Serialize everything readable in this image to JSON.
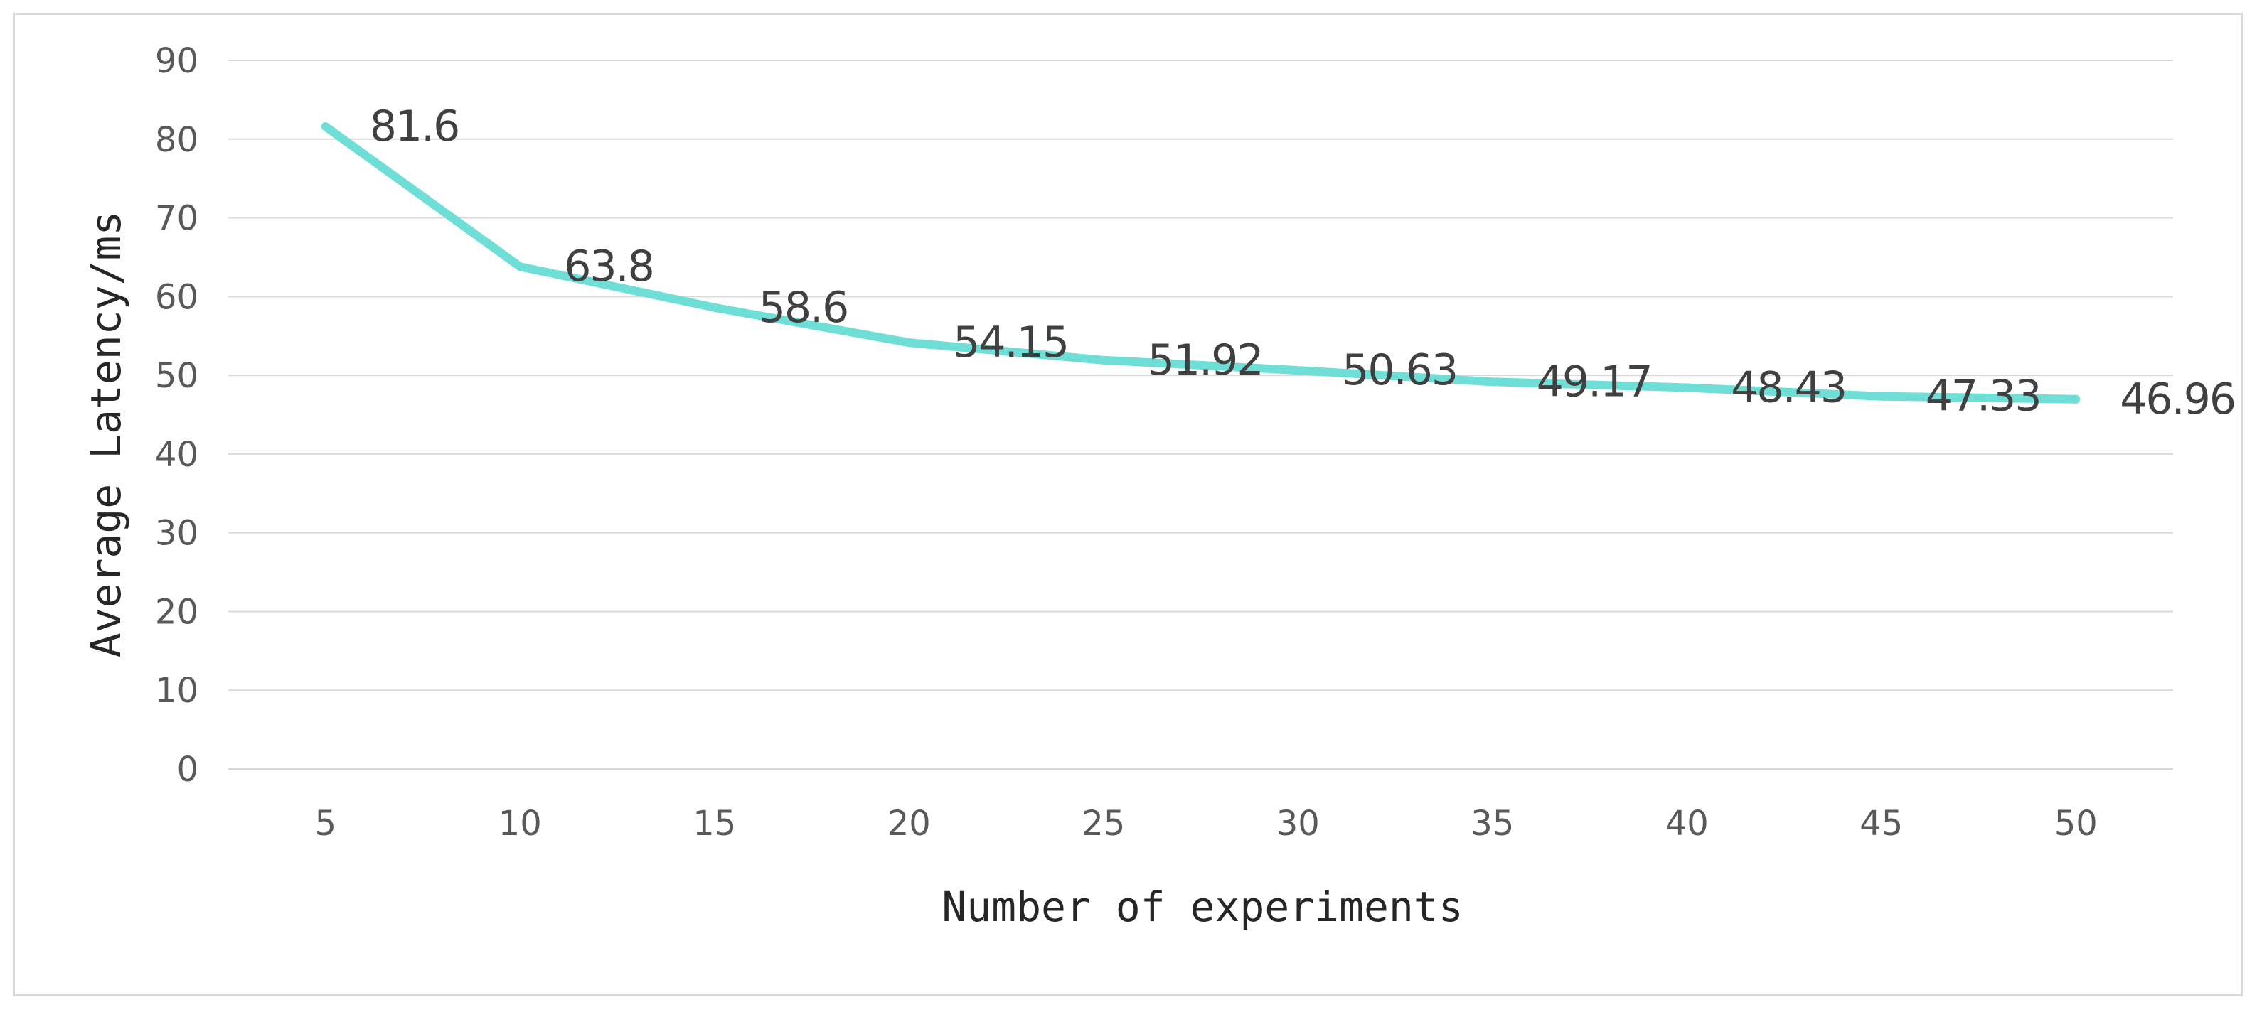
{
  "chart_data": {
    "type": "line",
    "title": "",
    "xlabel": "Number of experiments",
    "ylabel": "Average Latency/ms",
    "x": [
      5,
      10,
      15,
      20,
      25,
      30,
      35,
      40,
      45,
      50
    ],
    "series": [
      {
        "values": [
          81.6,
          63.8,
          58.6,
          54.15,
          51.92,
          50.63,
          49.17,
          48.43,
          47.33,
          46.96
        ],
        "labels": [
          "81.6",
          "63.8",
          "58.6",
          "54.15",
          "51.92",
          "50.63",
          "49.17",
          "48.43",
          "47.33",
          "46.96"
        ],
        "color": "#6fded6"
      }
    ],
    "x_tick_labels": [
      "5",
      "10",
      "15",
      "20",
      "25",
      "30",
      "35",
      "40",
      "45",
      "50"
    ],
    "y_tick_labels": [
      "0",
      "10",
      "20",
      "30",
      "40",
      "50",
      "60",
      "70",
      "80",
      "90"
    ],
    "ylim": [
      0,
      90
    ],
    "grid": true,
    "gridline_color": "#d9d9d9",
    "legend": "none"
  }
}
